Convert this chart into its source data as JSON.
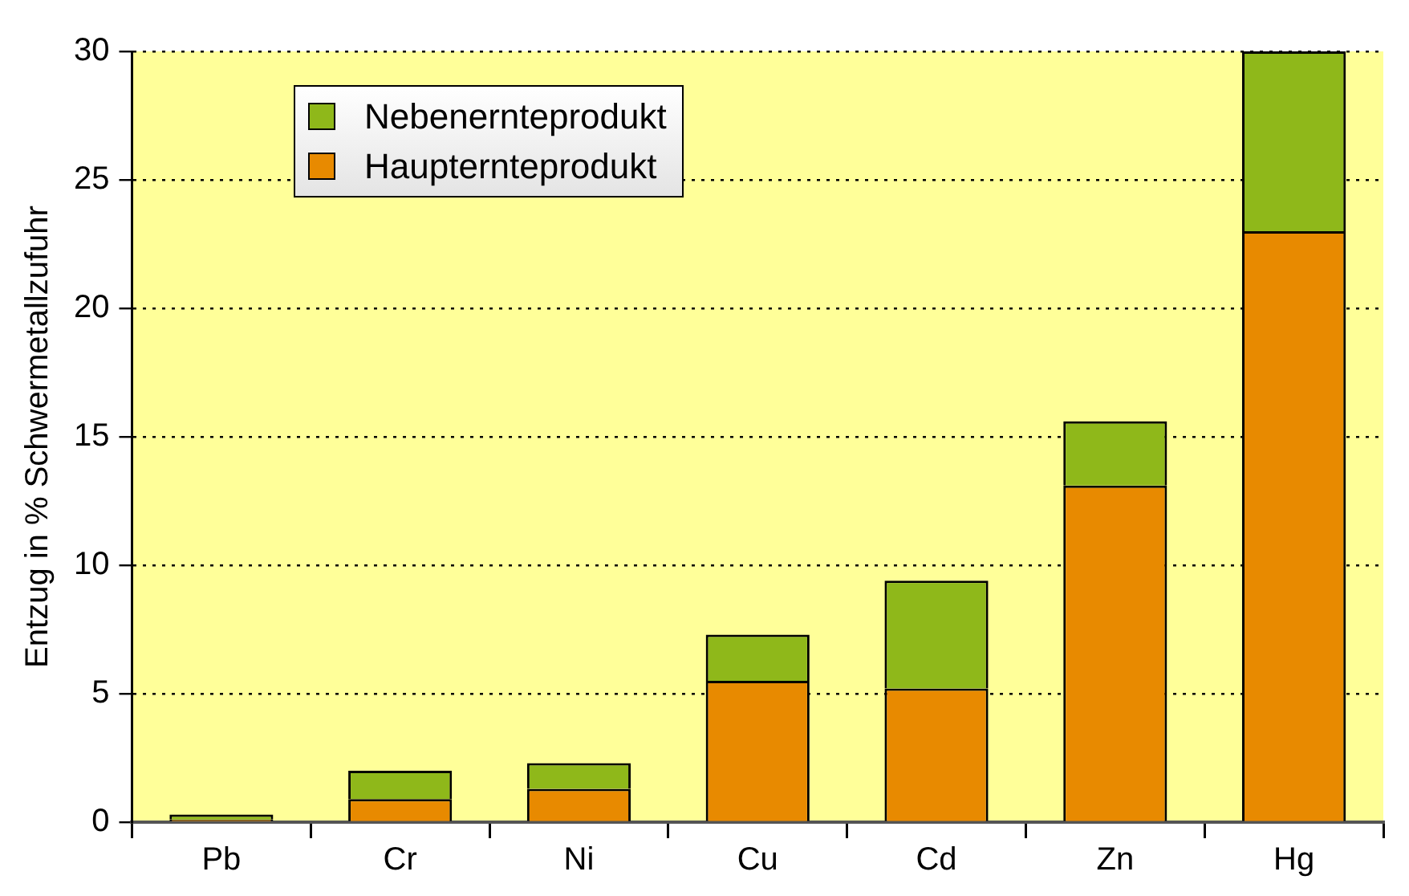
{
  "chart_data": {
    "type": "bar",
    "ylabel": "Entzug in % Schwermetallzufuhr",
    "categories": [
      "Pb",
      "Cr",
      "Ni",
      "Cu",
      "Cd",
      "Zn",
      "Hg"
    ],
    "stacked": true,
    "series": [
      {
        "name": "Haupternteprodukt",
        "color": "#e88a00",
        "values": [
          0.1,
          0.9,
          1.3,
          5.5,
          5.2,
          13.1,
          23.0
        ]
      },
      {
        "name": "Nebenernteprodukt",
        "color": "#8fb81a",
        "values": [
          0.2,
          1.1,
          1.0,
          1.8,
          4.2,
          2.5,
          7.0
        ]
      }
    ],
    "ylim": [
      0,
      30
    ],
    "yticks": [
      0,
      5,
      10,
      15,
      20,
      25,
      30
    ],
    "grid": "y",
    "legend": "top left"
  }
}
